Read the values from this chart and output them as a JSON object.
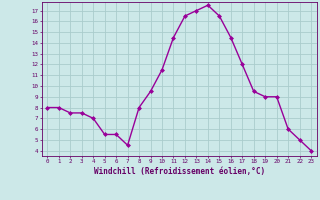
{
  "x": [
    0,
    1,
    2,
    3,
    4,
    5,
    6,
    7,
    8,
    9,
    10,
    11,
    12,
    13,
    14,
    15,
    16,
    17,
    18,
    19,
    20,
    21,
    22,
    23
  ],
  "y": [
    8,
    8,
    7.5,
    7.5,
    7,
    5.5,
    5.5,
    4.5,
    8,
    9.5,
    11.5,
    14.5,
    16.5,
    17,
    17.5,
    16.5,
    14.5,
    12,
    9.5,
    9,
    9,
    6,
    5,
    4
  ],
  "line_color": "#990099",
  "marker_color": "#990099",
  "bg_color": "#cce8e8",
  "grid_color": "#aacccc",
  "axis_color": "#660066",
  "xlabel": "Windchill (Refroidissement éolien,°C)",
  "ylabel_ticks": [
    4,
    5,
    6,
    7,
    8,
    9,
    10,
    11,
    12,
    13,
    14,
    15,
    16,
    17
  ],
  "ylim": [
    3.5,
    17.8
  ],
  "xlim": [
    -0.5,
    23.5
  ]
}
